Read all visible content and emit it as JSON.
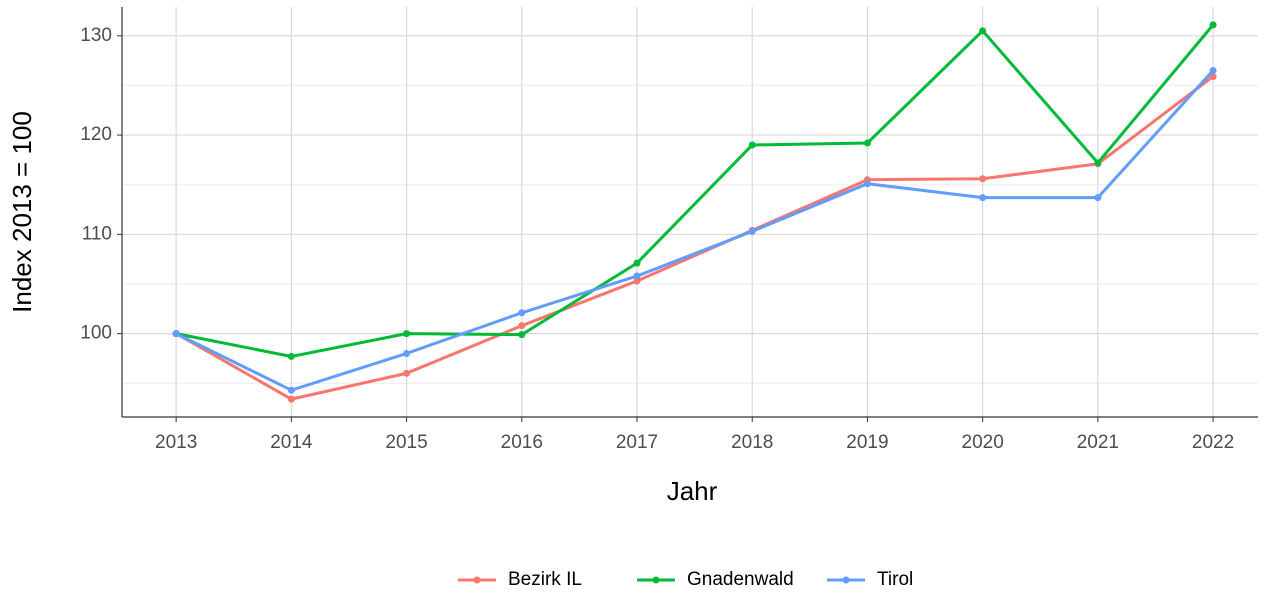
{
  "chart_data": {
    "type": "line",
    "x_label": "Jahr",
    "y_label": "Index  2013  = 100",
    "x": [
      2013,
      2014,
      2015,
      2016,
      2017,
      2018,
      2019,
      2020,
      2021,
      2022
    ],
    "series": [
      {
        "name": "Bezirk IL",
        "color": "#F8766D",
        "values": [
          100,
          93.4,
          96.0,
          100.8,
          105.3,
          110.4,
          115.5,
          115.6,
          117.1,
          125.9
        ]
      },
      {
        "name": "Gnadenwald",
        "color": "#00BA38",
        "values": [
          100,
          97.7,
          100.0,
          99.9,
          107.1,
          119.0,
          119.2,
          130.5,
          117.2,
          131.1
        ]
      },
      {
        "name": "Tirol",
        "color": "#619CFF",
        "values": [
          100,
          94.3,
          98.0,
          102.1,
          105.8,
          110.3,
          115.1,
          113.7,
          113.7,
          126.5
        ]
      }
    ],
    "xlim": [
      2012.53,
      2022.39
    ],
    "xticks": [
      2013,
      2014,
      2015,
      2016,
      2017,
      2018,
      2019,
      2020,
      2021,
      2022
    ],
    "ylim": [
      91.6,
      132.9
    ],
    "yticks": [
      100,
      110,
      120,
      130
    ],
    "y_minor_ticks": [
      95,
      105,
      115,
      125
    ],
    "grid": true,
    "legend": "bottom"
  }
}
